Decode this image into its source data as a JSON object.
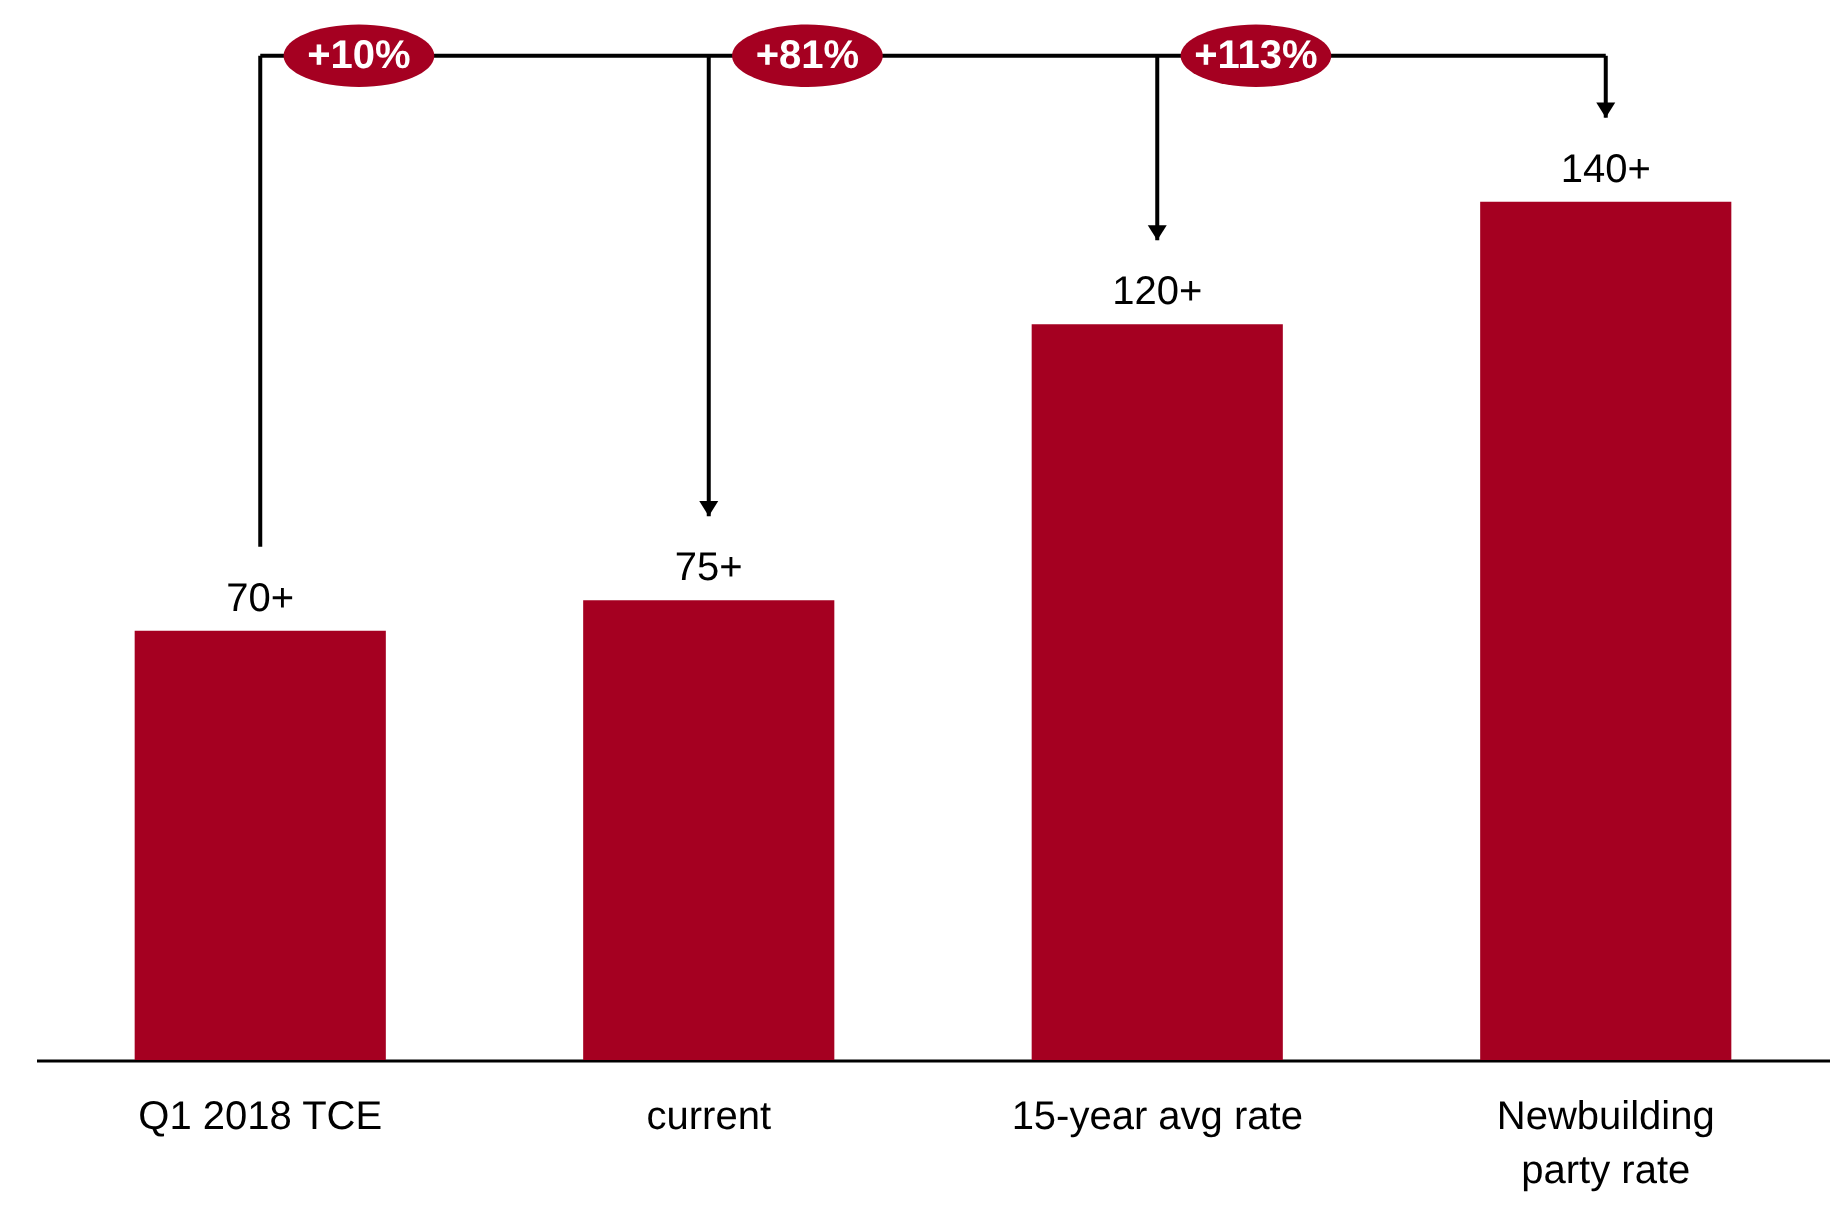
{
  "chart_data": {
    "type": "bar",
    "categories": [
      "Q1 2018 TCE",
      "current",
      "15-year avg rate",
      "Newbuilding party rate"
    ],
    "values": [
      70,
      75,
      120,
      140
    ],
    "color": "#a50021",
    "value_labels": [
      "70+",
      "75+",
      "120+",
      "140+"
    ],
    "annotations": [
      "+10%",
      "+81%",
      "+113%"
    ],
    "grid": false
  }
}
